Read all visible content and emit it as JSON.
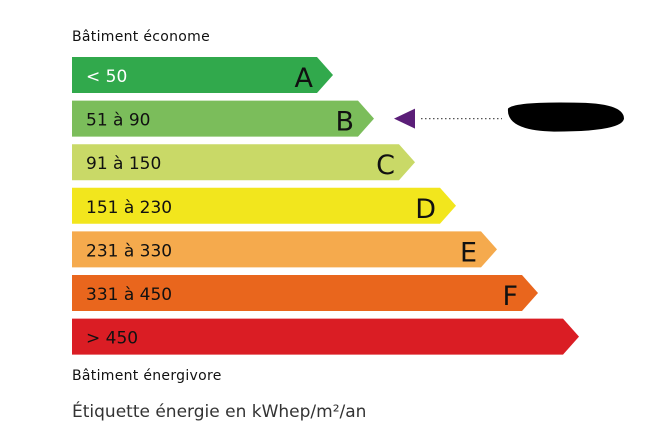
{
  "header_top": "Bâtiment économe",
  "header_bottom": "Bâtiment énergivore",
  "unit_label": "Étiquette énergie en kWhep/m²/an",
  "current_class": "B",
  "marker_color": "#5b1e78",
  "classes": [
    {
      "range": "< 50",
      "letter": "A",
      "color": "#31a94c",
      "text_color": "#ffffff"
    },
    {
      "range": "51 à 90",
      "letter": "B",
      "color": "#7bbd5b",
      "text_color": "#111111"
    },
    {
      "range": "91 à 150",
      "letter": "C",
      "color": "#c9d967",
      "text_color": "#111111"
    },
    {
      "range": "151 à 230",
      "letter": "D",
      "color": "#f2e61d",
      "text_color": "#111111"
    },
    {
      "range": "231 à 330",
      "letter": "E",
      "color": "#f5aa4d",
      "text_color": "#111111"
    },
    {
      "range": "331 à 450",
      "letter": "F",
      "color": "#e9661d",
      "text_color": "#111111"
    },
    {
      "range": "> 450",
      "letter": "",
      "color": "#da1d24",
      "text_color": "#111111"
    }
  ]
}
